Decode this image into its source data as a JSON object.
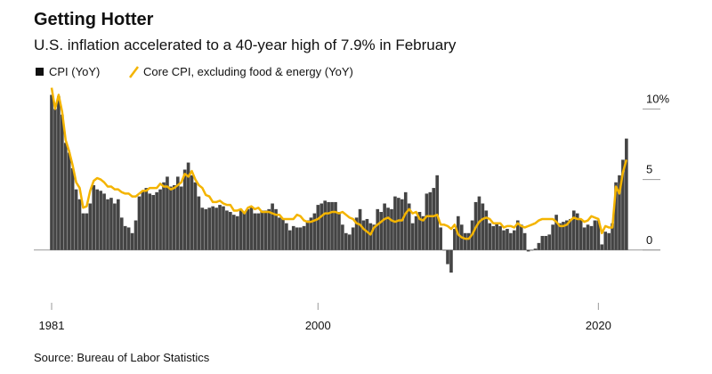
{
  "chart_data": {
    "type": "bar_line",
    "title": "Getting Hotter",
    "subtitle": "U.S. inflation accelerated to a 40-year high of 7.9% in February",
    "source": "Source: Bureau of Labor Statistics",
    "x": [
      1981,
      1981.25,
      1981.5,
      1981.75,
      1982,
      1982.25,
      1982.5,
      1982.75,
      1983,
      1983.25,
      1983.5,
      1983.75,
      1984,
      1984.25,
      1984.5,
      1984.75,
      1985,
      1985.25,
      1985.5,
      1985.75,
      1986,
      1986.25,
      1986.5,
      1986.75,
      1987,
      1987.25,
      1987.5,
      1987.75,
      1988,
      1988.25,
      1988.5,
      1988.75,
      1989,
      1989.25,
      1989.5,
      1989.75,
      1990,
      1990.25,
      1990.5,
      1990.75,
      1991,
      1991.25,
      1991.5,
      1991.75,
      1992,
      1992.25,
      1992.5,
      1992.75,
      1993,
      1993.25,
      1993.5,
      1993.75,
      1994,
      1994.25,
      1994.5,
      1994.75,
      1995,
      1995.25,
      1995.5,
      1995.75,
      1996,
      1996.25,
      1996.5,
      1996.75,
      1997,
      1997.25,
      1997.5,
      1997.75,
      1998,
      1998.25,
      1998.5,
      1998.75,
      1999,
      1999.25,
      1999.5,
      1999.75,
      2000,
      2000.25,
      2000.5,
      2000.75,
      2001,
      2001.25,
      2001.5,
      2001.75,
      2002,
      2002.25,
      2002.5,
      2002.75,
      2003,
      2003.25,
      2003.5,
      2003.75,
      2004,
      2004.25,
      2004.5,
      2004.75,
      2005,
      2005.25,
      2005.5,
      2005.75,
      2006,
      2006.25,
      2006.5,
      2006.75,
      2007,
      2007.25,
      2007.5,
      2007.75,
      2008,
      2008.25,
      2008.5,
      2008.75,
      2009,
      2009.25,
      2009.5,
      2009.75,
      2010,
      2010.25,
      2010.5,
      2010.75,
      2011,
      2011.25,
      2011.5,
      2011.75,
      2012,
      2012.25,
      2012.5,
      2012.75,
      2013,
      2013.25,
      2013.5,
      2013.75,
      2014,
      2014.25,
      2014.5,
      2014.75,
      2015,
      2015.25,
      2015.5,
      2015.75,
      2016,
      2016.25,
      2016.5,
      2016.75,
      2017,
      2017.25,
      2017.5,
      2017.75,
      2018,
      2018.25,
      2018.5,
      2018.75,
      2019,
      2019.25,
      2019.5,
      2019.75,
      2020,
      2020.25,
      2020.5,
      2020.75,
      2021,
      2021.25,
      2021.5,
      2021.75,
      2022
    ],
    "series": [
      {
        "name": "CPI (YoY)",
        "type": "bar",
        "color": "#444444",
        "values": [
          11.0,
          10.0,
          10.9,
          9.6,
          7.6,
          6.9,
          5.8,
          4.3,
          3.6,
          2.6,
          2.6,
          3.3,
          4.6,
          4.3,
          4.2,
          4.0,
          3.6,
          3.7,
          3.3,
          3.6,
          2.3,
          1.7,
          1.6,
          1.2,
          2.1,
          3.8,
          4.2,
          4.4,
          4.0,
          3.9,
          4.1,
          4.3,
          4.8,
          5.2,
          4.5,
          4.6,
          5.2,
          4.5,
          5.7,
          6.2,
          5.3,
          4.8,
          3.8,
          3.0,
          2.9,
          3.0,
          3.1,
          3.0,
          3.2,
          3.1,
          2.8,
          2.7,
          2.5,
          2.4,
          2.9,
          2.7,
          2.9,
          3.1,
          2.6,
          2.6,
          2.8,
          2.8,
          2.9,
          3.3,
          2.9,
          2.3,
          2.2,
          1.9,
          1.4,
          1.7,
          1.6,
          1.6,
          1.7,
          2.1,
          2.3,
          2.6,
          3.2,
          3.3,
          3.5,
          3.4,
          3.4,
          3.4,
          2.7,
          1.8,
          1.2,
          1.1,
          1.6,
          2.3,
          2.9,
          2.1,
          2.2,
          1.9,
          1.8,
          2.9,
          2.7,
          3.3,
          3.0,
          2.9,
          3.8,
          3.7,
          3.6,
          4.1,
          3.3,
          1.9,
          2.4,
          2.7,
          2.4,
          4.0,
          4.1,
          4.4,
          5.3,
          1.6,
          0.0,
          -1.0,
          -1.6,
          1.5,
          2.4,
          1.8,
          1.2,
          1.2,
          2.1,
          3.4,
          3.8,
          3.3,
          2.8,
          1.9,
          1.7,
          1.9,
          1.7,
          1.4,
          1.5,
          1.2,
          1.4,
          2.1,
          1.8,
          1.2,
          -0.1,
          0.0,
          0.1,
          0.5,
          1.0,
          1.0,
          1.1,
          1.8,
          2.5,
          1.9,
          2.0,
          2.1,
          2.2,
          2.8,
          2.6,
          2.2,
          1.6,
          1.8,
          1.7,
          2.1,
          2.1,
          0.4,
          1.3,
          1.2,
          1.9,
          4.8,
          5.3,
          6.4,
          7.9
        ]
      },
      {
        "name": "Core CPI, excluding food & energy (YoY)",
        "type": "line",
        "color": "#f4b400",
        "values": [
          11.5,
          10.0,
          11.0,
          9.8,
          7.8,
          7.0,
          6.0,
          4.8,
          4.4,
          3.0,
          3.1,
          4.2,
          4.9,
          5.1,
          5.0,
          4.8,
          4.5,
          4.5,
          4.3,
          4.3,
          4.1,
          4.0,
          4.0,
          3.8,
          3.8,
          4.0,
          4.2,
          4.2,
          4.4,
          4.4,
          4.4,
          4.7,
          4.5,
          4.5,
          4.3,
          4.4,
          4.6,
          4.8,
          5.4,
          5.2,
          5.6,
          5.0,
          4.6,
          4.4,
          3.9,
          3.8,
          3.4,
          3.4,
          3.5,
          3.3,
          3.2,
          3.2,
          2.8,
          2.8,
          2.9,
          2.6,
          3.0,
          3.1,
          2.9,
          3.0,
          2.7,
          2.7,
          2.7,
          2.6,
          2.5,
          2.5,
          2.2,
          2.2,
          2.2,
          2.2,
          2.5,
          2.4,
          2.1,
          2.0,
          2.0,
          2.1,
          2.2,
          2.4,
          2.6,
          2.6,
          2.7,
          2.7,
          2.6,
          2.7,
          2.5,
          2.3,
          2.2,
          1.9,
          1.8,
          1.5,
          1.3,
          1.1,
          1.6,
          1.8,
          2.0,
          2.2,
          2.3,
          2.1,
          2.0,
          2.1,
          2.1,
          2.6,
          2.9,
          2.6,
          2.7,
          2.2,
          2.1,
          2.4,
          2.4,
          2.4,
          2.5,
          1.8,
          1.8,
          1.7,
          1.5,
          1.8,
          1.1,
          0.9,
          0.8,
          0.8,
          1.1,
          1.6,
          2.0,
          2.2,
          2.3,
          2.2,
          1.9,
          1.9,
          1.9,
          1.6,
          1.7,
          1.7,
          1.6,
          1.9,
          1.7,
          1.6,
          1.7,
          1.8,
          1.9,
          2.1,
          2.2,
          2.2,
          2.2,
          2.2,
          2.0,
          1.7,
          1.7,
          1.8,
          2.1,
          2.3,
          2.2,
          2.2,
          2.0,
          2.1,
          2.4,
          2.3,
          2.2,
          1.2,
          1.7,
          1.6,
          1.6,
          4.5,
          4.0,
          5.5,
          6.4
        ]
      }
    ],
    "xlim": [
      1981,
      2022.2
    ],
    "xticks": [
      1981,
      2000,
      2020
    ],
    "ylim": [
      -2.6,
      11.6
    ],
    "yticks": [
      0,
      5,
      {
        "value": 10,
        "label": "10%"
      }
    ]
  }
}
